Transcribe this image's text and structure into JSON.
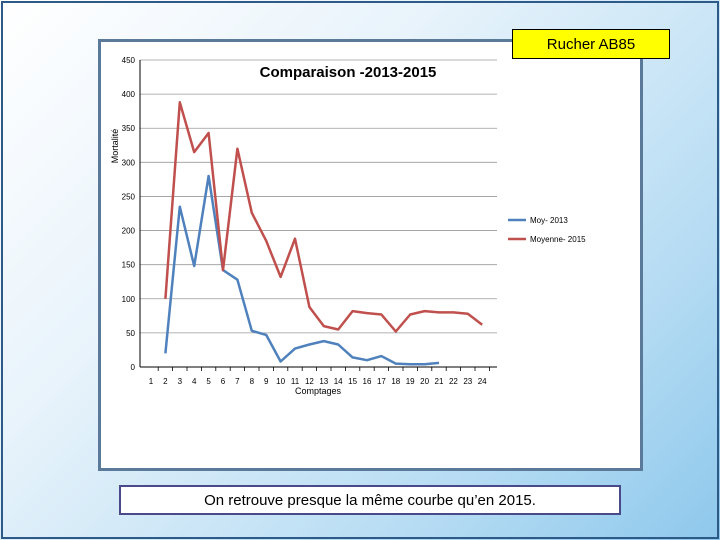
{
  "rucher_label": "Rucher AB85",
  "caption": "On retrouve presque la même courbe qu’en 2015.",
  "chart_data": {
    "type": "line",
    "title": "Comparaison -2013-2015",
    "xlabel": "Comptages",
    "ylabel": "Mortalité",
    "categories": [
      1,
      2,
      3,
      4,
      5,
      6,
      7,
      8,
      9,
      10,
      11,
      12,
      13,
      14,
      15,
      16,
      17,
      18,
      19,
      20,
      21,
      22,
      23,
      24
    ],
    "ylim": [
      0,
      450
    ],
    "yticks": [
      0,
      50,
      100,
      150,
      200,
      250,
      300,
      350,
      400,
      450
    ],
    "grid": true,
    "legend_position": "right",
    "series": [
      {
        "name": "Moy- 2013",
        "color": "#4f81bd",
        "values": [
          null,
          20,
          235,
          148,
          280,
          142,
          128,
          53,
          47,
          8,
          27,
          33,
          38,
          33,
          14,
          10,
          16,
          5,
          4,
          4,
          6,
          null,
          null,
          null
        ]
      },
      {
        "name": "Moyenne- 2015",
        "color": "#c0504d",
        "values": [
          null,
          100,
          388,
          315,
          343,
          142,
          320,
          226,
          185,
          132,
          188,
          88,
          60,
          55,
          82,
          79,
          77,
          52,
          77,
          82,
          80,
          80,
          78,
          62
        ]
      }
    ]
  }
}
